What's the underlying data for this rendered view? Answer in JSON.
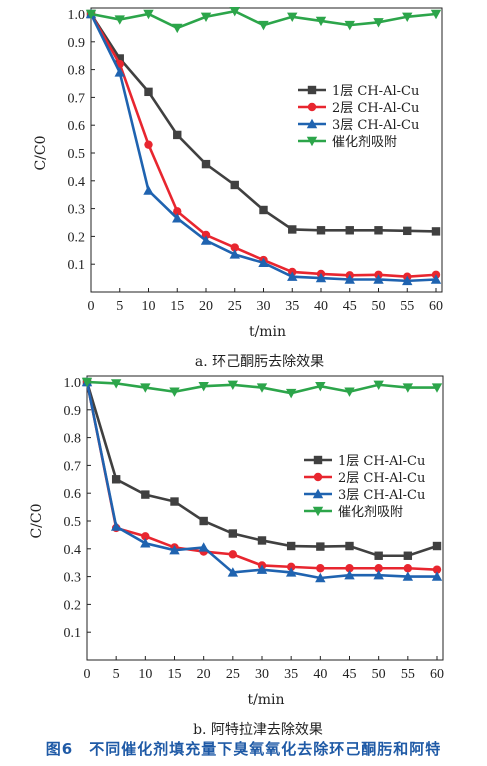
{
  "figure_caption": "图6　不同催化剂填充量下臭氧氧化去除环己酮肟和阿特",
  "chart_data": [
    {
      "type": "line",
      "subtitle": "a. 环己酮肟去除效果",
      "xlabel": "t/min",
      "ylabel": "C/C0",
      "x": [
        0,
        5,
        10,
        15,
        20,
        25,
        30,
        35,
        40,
        45,
        50,
        55,
        60
      ],
      "xlim": [
        0,
        60
      ],
      "ylim": [
        0,
        1.0
      ],
      "yticks": [
        0.1,
        0.2,
        0.3,
        0.4,
        0.5,
        0.6,
        0.7,
        0.8,
        0.9,
        1.0
      ],
      "xticks": [
        0,
        5,
        10,
        15,
        20,
        25,
        30,
        35,
        40,
        45,
        50,
        55,
        60
      ],
      "legend_position": "upper-right",
      "series": [
        {
          "name": "1层 CH-Al-Cu",
          "color": "#404040",
          "marker": "square",
          "values": [
            1.0,
            0.84,
            0.72,
            0.565,
            0.46,
            0.385,
            0.295,
            0.225,
            0.222,
            0.222,
            0.222,
            0.22,
            0.218
          ]
        },
        {
          "name": "2层 CH-Al-Cu",
          "color": "#e8262f",
          "marker": "circle",
          "values": [
            1.0,
            0.82,
            0.53,
            0.29,
            0.205,
            0.16,
            0.115,
            0.072,
            0.065,
            0.06,
            0.062,
            0.055,
            0.062
          ]
        },
        {
          "name": "3层 CH-Al-Cu",
          "color": "#1f63b0",
          "marker": "triangle-up",
          "values": [
            1.0,
            0.79,
            0.365,
            0.265,
            0.185,
            0.135,
            0.105,
            0.055,
            0.05,
            0.045,
            0.045,
            0.04,
            0.045
          ]
        },
        {
          "name": "催化剂吸附",
          "color": "#2ca54a",
          "marker": "triangle-down",
          "values": [
            1.0,
            0.98,
            1.0,
            0.95,
            0.99,
            1.01,
            0.96,
            0.99,
            0.975,
            0.96,
            0.97,
            0.99,
            1.0
          ]
        }
      ]
    },
    {
      "type": "line",
      "subtitle": "b. 阿特拉津去除效果",
      "xlabel": "t/min",
      "ylabel": "C/C0",
      "x": [
        0,
        5,
        10,
        15,
        20,
        25,
        30,
        35,
        40,
        45,
        50,
        55,
        60
      ],
      "xlim": [
        0,
        60
      ],
      "ylim": [
        0,
        1.0
      ],
      "yticks": [
        0.1,
        0.2,
        0.3,
        0.4,
        0.5,
        0.6,
        0.7,
        0.8,
        0.9,
        1.0
      ],
      "xticks": [
        0,
        5,
        10,
        15,
        20,
        25,
        30,
        35,
        40,
        45,
        50,
        55,
        60
      ],
      "legend_position": "right",
      "series": [
        {
          "name": "1层 CH-Al-Cu",
          "color": "#404040",
          "marker": "square",
          "values": [
            1.0,
            0.65,
            0.595,
            0.57,
            0.5,
            0.455,
            0.43,
            0.41,
            0.408,
            0.41,
            0.375,
            0.375,
            0.41
          ]
        },
        {
          "name": "2层 CH-Al-Cu",
          "color": "#e8262f",
          "marker": "circle",
          "values": [
            1.0,
            0.475,
            0.445,
            0.405,
            0.39,
            0.38,
            0.34,
            0.335,
            0.33,
            0.33,
            0.33,
            0.33,
            0.325
          ]
        },
        {
          "name": "3层 CH-Al-Cu",
          "color": "#1f63b0",
          "marker": "triangle-up",
          "values": [
            1.0,
            0.48,
            0.42,
            0.395,
            0.405,
            0.315,
            0.325,
            0.315,
            0.295,
            0.305,
            0.305,
            0.3,
            0.3
          ]
        },
        {
          "name": "催化剂吸附",
          "color": "#2ca54a",
          "marker": "triangle-down",
          "values": [
            1.0,
            0.995,
            0.98,
            0.965,
            0.985,
            0.99,
            0.98,
            0.96,
            0.985,
            0.965,
            0.99,
            0.98,
            0.98
          ]
        }
      ]
    }
  ]
}
